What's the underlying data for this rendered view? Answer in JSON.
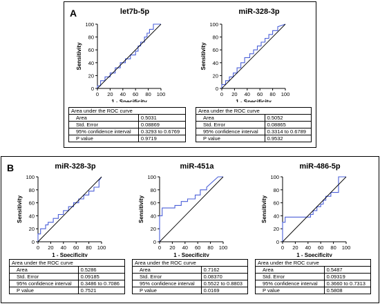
{
  "panels": [
    {
      "letter": "A"
    },
    {
      "letter": "B"
    }
  ],
  "table_labels": {
    "header": "Area under the ROC curve",
    "area": "Area",
    "std_error": "Std. Error",
    "ci": "95% confidence interval",
    "p_value": "P value"
  },
  "colors": {
    "roc_line": "#4a5fd8",
    "reference_line": "#000000",
    "axis": "#000000"
  },
  "chart_data": [
    {
      "type": "line",
      "panel": "A",
      "title": "let7b-5p",
      "xlabel": "1 - Specificity",
      "ylabel": "Sensitivity",
      "xlim": [
        0,
        100
      ],
      "ylim": [
        0,
        100
      ],
      "xticks": [
        0,
        20,
        40,
        60,
        80,
        100
      ],
      "yticks": [
        0,
        20,
        40,
        60,
        80,
        100
      ],
      "series": [
        {
          "x": [
            0,
            0,
            5,
            5,
            12,
            12,
            20,
            20,
            28,
            28,
            36,
            36,
            44,
            44,
            52,
            52,
            60,
            60,
            64,
            64,
            68,
            68,
            74,
            74,
            78,
            78,
            82,
            82,
            88,
            88,
            100
          ],
          "y": [
            0,
            4,
            4,
            12,
            12,
            18,
            18,
            24,
            24,
            32,
            32,
            40,
            40,
            46,
            46,
            52,
            52,
            58,
            58,
            66,
            66,
            72,
            72,
            80,
            80,
            86,
            86,
            92,
            92,
            100,
            100
          ]
        },
        {
          "x": [
            0,
            100
          ],
          "y": [
            0,
            100
          ]
        }
      ],
      "stats": {
        "area": "0.5031",
        "std_error": "0.08869",
        "ci": "0.3293 to 0.6769",
        "p_value": "0.9719"
      }
    },
    {
      "type": "line",
      "panel": "A",
      "title": "miR-328-3p",
      "xlabel": "1 - Specificity",
      "ylabel": "Sensitivity",
      "xlim": [
        0,
        100
      ],
      "ylim": [
        0,
        100
      ],
      "xticks": [
        0,
        20,
        40,
        60,
        80,
        100
      ],
      "yticks": [
        0,
        20,
        40,
        60,
        80,
        100
      ],
      "series": [
        {
          "x": [
            0,
            0,
            6,
            6,
            12,
            12,
            18,
            18,
            24,
            24,
            30,
            30,
            36,
            36,
            44,
            44,
            50,
            50,
            56,
            56,
            62,
            62,
            68,
            68,
            74,
            74,
            80,
            80,
            88,
            88,
            100
          ],
          "y": [
            0,
            6,
            6,
            12,
            12,
            18,
            18,
            24,
            24,
            32,
            32,
            40,
            40,
            48,
            48,
            54,
            54,
            60,
            60,
            66,
            66,
            72,
            72,
            78,
            78,
            84,
            84,
            90,
            90,
            96,
            100
          ]
        },
        {
          "x": [
            0,
            100
          ],
          "y": [
            0,
            100
          ]
        }
      ],
      "stats": {
        "area": "0.5052",
        "std_error": "0.08865",
        "ci": "0.3314 to 0.6789",
        "p_value": "0.9532"
      }
    },
    {
      "type": "line",
      "panel": "B",
      "title": "miR-328-3p",
      "xlabel": "1 - Specificity",
      "ylabel": "Sensitivity",
      "xlim": [
        0,
        100
      ],
      "ylim": [
        0,
        100
      ],
      "xticks": [
        0,
        20,
        40,
        60,
        80,
        100
      ],
      "yticks": [
        0,
        20,
        40,
        60,
        80,
        100
      ],
      "series": [
        {
          "x": [
            0,
            0,
            4,
            4,
            12,
            12,
            16,
            16,
            24,
            24,
            32,
            32,
            40,
            40,
            48,
            48,
            56,
            56,
            64,
            64,
            72,
            72,
            80,
            80,
            88,
            88,
            96,
            96,
            100
          ],
          "y": [
            0,
            12,
            12,
            20,
            20,
            26,
            26,
            30,
            30,
            36,
            36,
            42,
            42,
            48,
            48,
            54,
            54,
            60,
            60,
            66,
            66,
            72,
            72,
            78,
            78,
            84,
            84,
            94,
            100
          ]
        },
        {
          "x": [
            0,
            100
          ],
          "y": [
            0,
            100
          ]
        }
      ],
      "stats": {
        "area": "0.5286",
        "std_error": "0.09185",
        "ci": "0.3486 to 0.7086",
        "p_value": "0.7521"
      }
    },
    {
      "type": "line",
      "panel": "B",
      "title": "miR-451a",
      "xlabel": "1 - Specificity",
      "ylabel": "Sensitivity",
      "xlim": [
        0,
        100
      ],
      "ylim": [
        0,
        100
      ],
      "xticks": [
        0,
        20,
        40,
        60,
        80,
        100
      ],
      "yticks": [
        0,
        20,
        40,
        60,
        80,
        100
      ],
      "series": [
        {
          "x": [
            0,
            0,
            4,
            4,
            24,
            24,
            34,
            34,
            44,
            44,
            56,
            56,
            64,
            64,
            74,
            74,
            92,
            100
          ],
          "y": [
            0,
            40,
            40,
            52,
            52,
            56,
            56,
            62,
            62,
            66,
            66,
            72,
            72,
            80,
            80,
            84,
            100,
            100
          ]
        },
        {
          "x": [
            0,
            100
          ],
          "y": [
            0,
            100
          ]
        }
      ],
      "stats": {
        "area": "0.7162",
        "std_error": "0.08370",
        "ci": "0.5522 to 0.8803",
        "p_value": "0.0169"
      }
    },
    {
      "type": "line",
      "panel": "B",
      "title": "miR-486-5p",
      "xlabel": "1 - Specificity",
      "ylabel": "Sensitivity",
      "xlim": [
        0,
        100
      ],
      "ylim": [
        0,
        100
      ],
      "xticks": [
        0,
        20,
        40,
        60,
        80,
        100
      ],
      "yticks": [
        0,
        20,
        40,
        60,
        80,
        100
      ],
      "series": [
        {
          "x": [
            0,
            0,
            4,
            4,
            44,
            44,
            48,
            48,
            54,
            54,
            60,
            60,
            64,
            64,
            68,
            68,
            76,
            76,
            88,
            88,
            100
          ],
          "y": [
            0,
            30,
            30,
            38,
            38,
            42,
            42,
            48,
            48,
            54,
            54,
            58,
            58,
            64,
            64,
            70,
            70,
            76,
            76,
            100,
            100
          ]
        },
        {
          "x": [
            0,
            100
          ],
          "y": [
            0,
            100
          ]
        }
      ],
      "stats": {
        "area": "0.5487",
        "std_error": "0.09319",
        "ci": "0.3660 to 0.7313",
        "p_value": "0.5808"
      }
    }
  ]
}
